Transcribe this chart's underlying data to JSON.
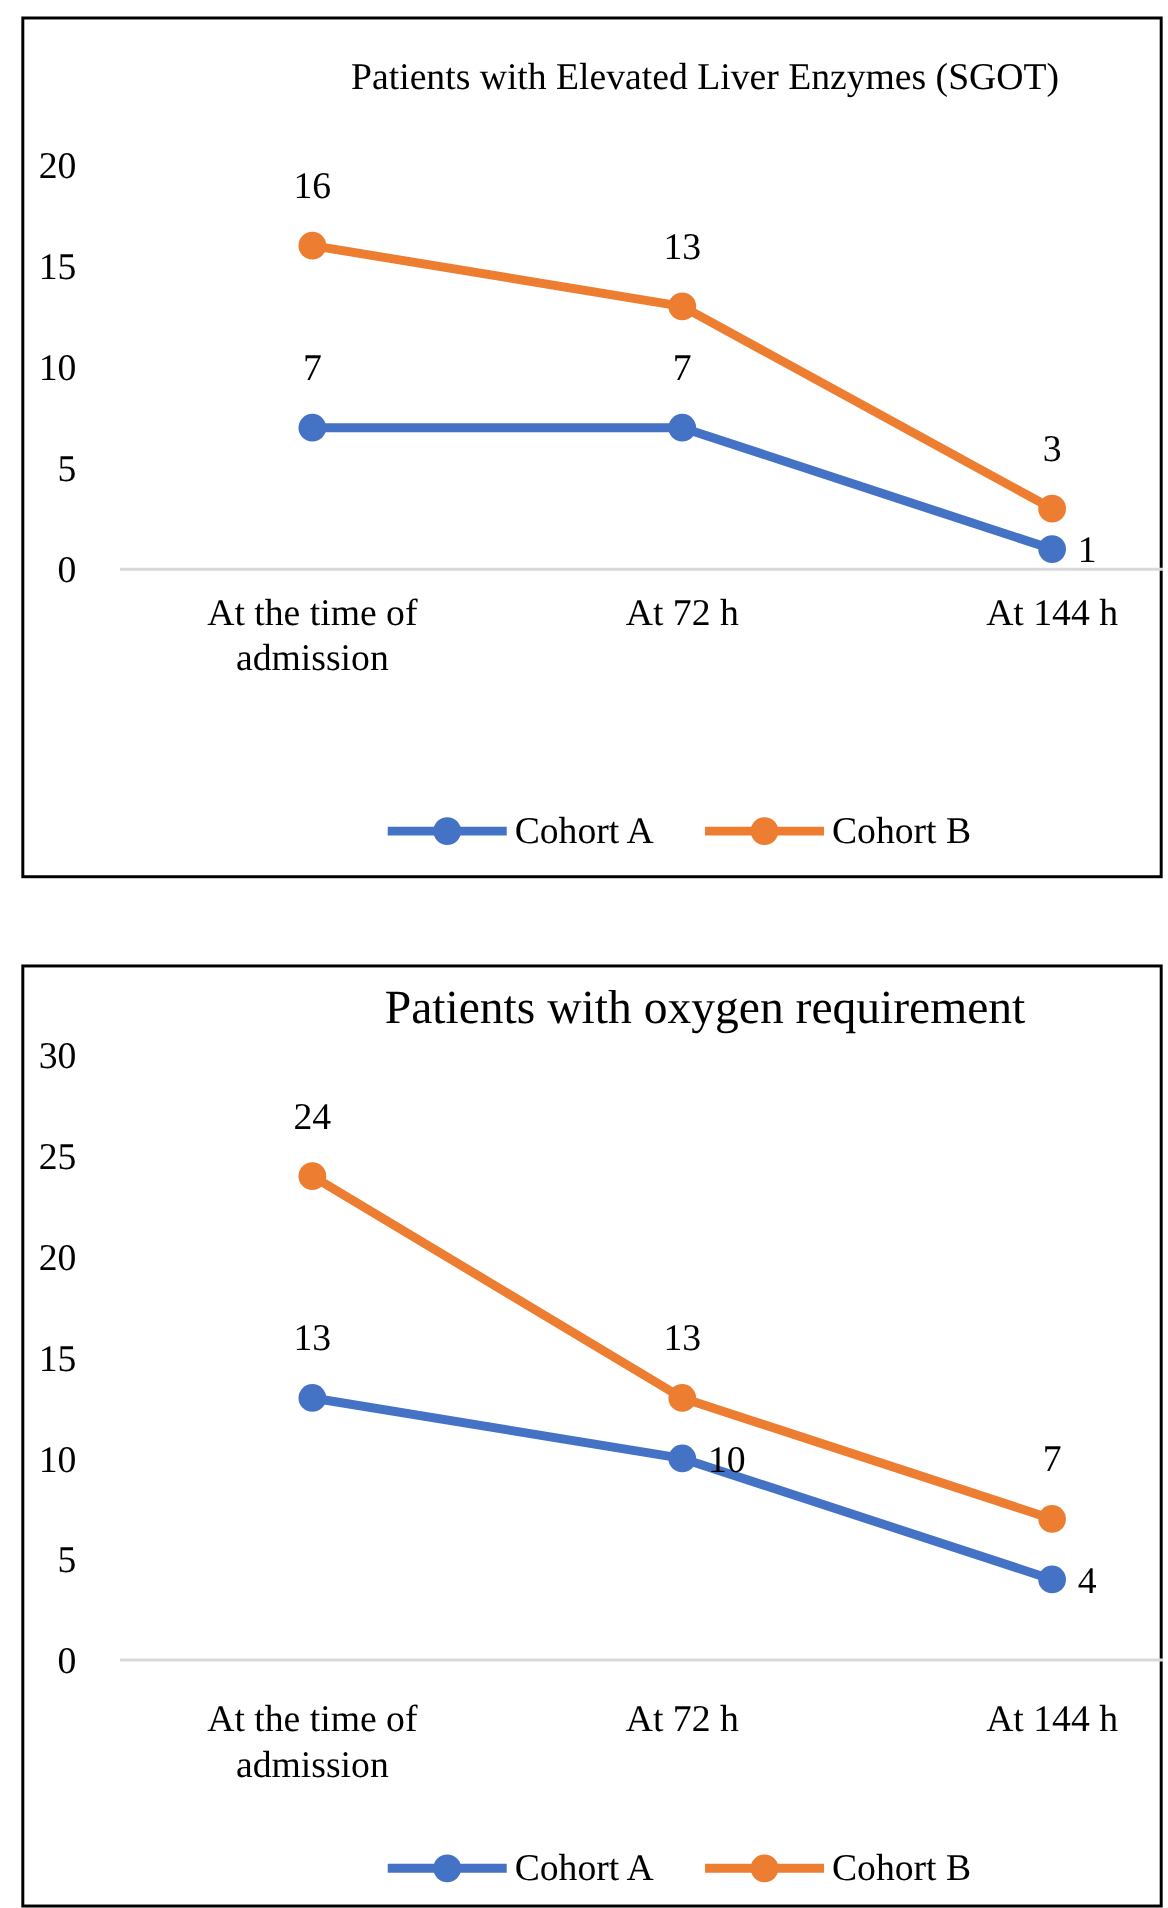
{
  "chart_data": [
    {
      "type": "line",
      "title": "Patients with Elevated Liver Enzymes (SGOT)",
      "categories": [
        "At the time of admission",
        "At 72 h",
        "At 144 h"
      ],
      "series": [
        {
          "name": "Cohort A",
          "color": "#4472c4",
          "values": [
            7,
            7,
            1
          ]
        },
        {
          "name": "Cohort B",
          "color": "#ed7d31",
          "values": [
            16,
            13,
            3
          ]
        }
      ],
      "ylim": [
        0,
        20
      ],
      "yticks": [
        0,
        5,
        10,
        15,
        20
      ],
      "marker": "circle",
      "legend": "bottom",
      "data_labels": true
    },
    {
      "type": "line",
      "title": "Patients with oxygen requirement",
      "categories": [
        "At the time of admission",
        "At 72 h",
        "At 144 h"
      ],
      "series": [
        {
          "name": "Cohort A",
          "color": "#4472c4",
          "values": [
            13,
            10,
            4
          ]
        },
        {
          "name": "Cohort B",
          "color": "#ed7d31",
          "values": [
            24,
            13,
            7
          ]
        }
      ],
      "ylim": [
        0,
        30
      ],
      "yticks": [
        0,
        5,
        10,
        15,
        20,
        25,
        30
      ],
      "marker": "circle",
      "legend": "bottom",
      "data_labels": true
    }
  ]
}
